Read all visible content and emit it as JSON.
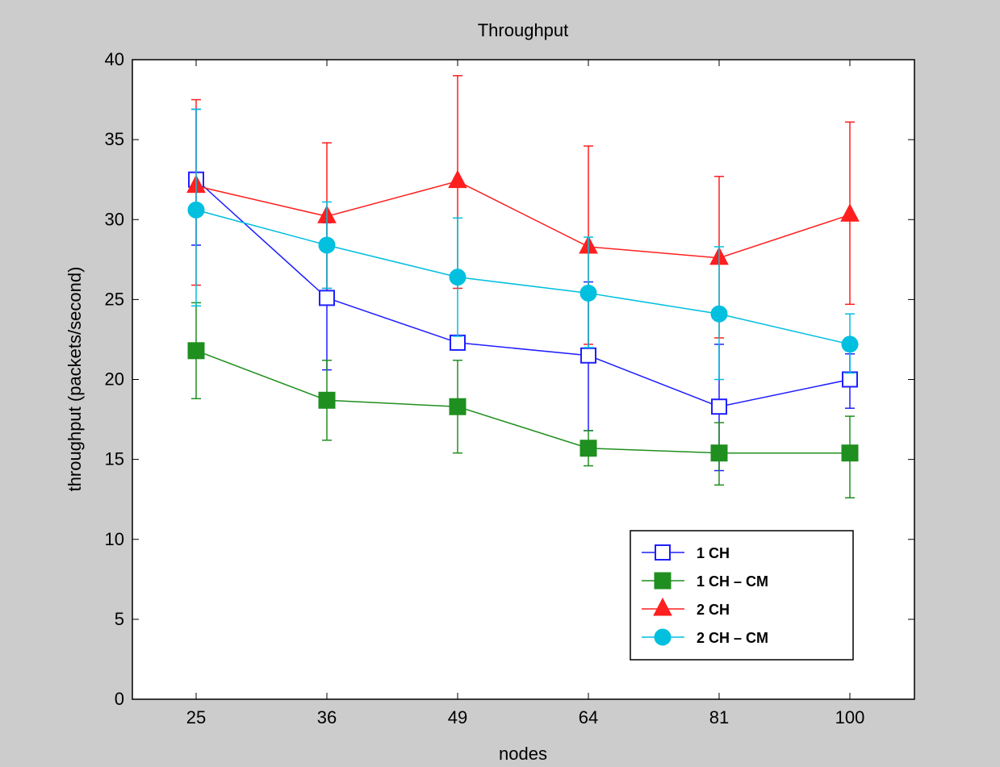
{
  "chart_data": {
    "type": "line",
    "title": "Throughput",
    "xlabel": "nodes",
    "ylabel": "throughput (packets/second)",
    "categories": [
      "25",
      "36",
      "49",
      "64",
      "81",
      "100"
    ],
    "ylim": [
      0,
      40
    ],
    "yticks": [
      0,
      5,
      10,
      15,
      20,
      25,
      30,
      35,
      40
    ],
    "grid": false,
    "legend_position": "bottom-right",
    "series": [
      {
        "name": "1 CH",
        "color": "#1f1fff",
        "marker": "square-open",
        "values": [
          32.5,
          25.1,
          22.3,
          21.5,
          18.3,
          20.0
        ],
        "err_low": [
          28.4,
          20.6,
          22.0,
          16.8,
          14.3,
          18.2
        ],
        "err_high": [
          36.9,
          29.8,
          22.5,
          26.1,
          22.2,
          21.6
        ]
      },
      {
        "name": "1 CH – CM",
        "color": "#1f8f1f",
        "marker": "square-filled",
        "values": [
          21.8,
          18.7,
          18.3,
          15.7,
          15.4,
          15.4
        ],
        "err_low": [
          18.8,
          16.2,
          15.4,
          14.6,
          13.4,
          12.6
        ],
        "err_high": [
          24.8,
          21.2,
          21.2,
          16.8,
          17.3,
          17.7
        ]
      },
      {
        "name": "2 CH",
        "color": "#ff1f1f",
        "marker": "triangle-filled",
        "values": [
          32.1,
          30.2,
          32.4,
          28.3,
          27.6,
          30.3
        ],
        "err_low": [
          25.9,
          25.7,
          25.7,
          22.2,
          22.6,
          24.7
        ],
        "err_high": [
          37.5,
          34.8,
          39.0,
          34.6,
          32.7,
          36.1
        ]
      },
      {
        "name": "2 CH – CM",
        "color": "#00bfdf",
        "marker": "circle-filled",
        "values": [
          30.6,
          28.4,
          26.4,
          25.4,
          24.1,
          22.2
        ],
        "err_low": [
          24.6,
          25.7,
          22.7,
          22.0,
          20.0,
          20.4
        ],
        "err_high": [
          36.9,
          31.1,
          30.1,
          28.9,
          28.3,
          24.1
        ]
      }
    ]
  }
}
